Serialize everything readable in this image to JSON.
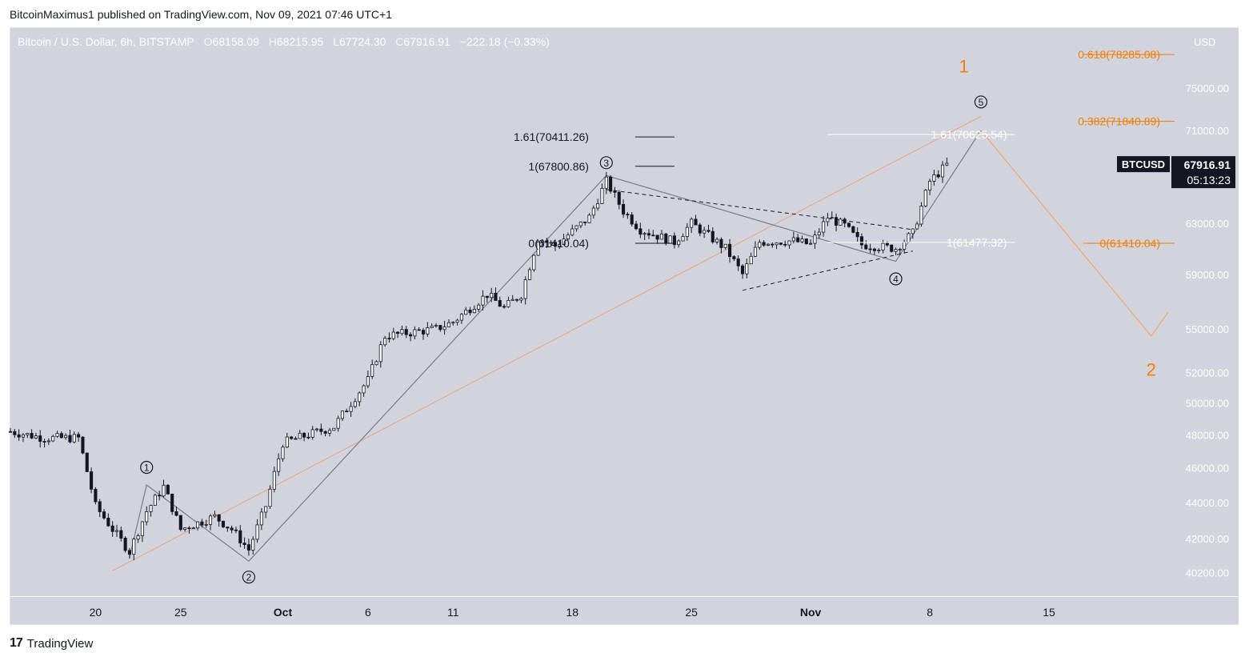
{
  "header": {
    "published_line": "BitcoinMaximus1 published on TradingView.com, Nov 09, 2021 07:46 UTC+1"
  },
  "legend": {
    "symbol": "Bitcoin / U.S. Dollar, 6h, BITSTAMP",
    "open_label": "O",
    "open": "68158.09",
    "high_label": "H",
    "high": "68215.95",
    "low_label": "L",
    "low": "67724.30",
    "close_label": "C",
    "close": "67916.91",
    "change": "−222.18 (−0.33%)"
  },
  "price_tag": {
    "ticker": "BTCUSD",
    "price": "67916.91",
    "countdown": "05:13:23"
  },
  "colors": {
    "accent": "#f57c00",
    "background": "#d1d4dc",
    "candle_up": "#ffffff",
    "candle_down": "#131722",
    "price_tag": "#131722"
  },
  "footer": {
    "brand": "TradingView"
  },
  "chart_data": {
    "type": "candlestick",
    "currency": "USD",
    "y_scale": "log",
    "ylim": [
      39000,
      81000
    ],
    "xlim": [
      "2021-09-15",
      "2021-11-22"
    ],
    "y_ticks": [
      "75000.00",
      "71000.00",
      "63000.00",
      "59000.00",
      "55000.00",
      "52000.00",
      "50000.00",
      "48000.00",
      "46000.00",
      "44000.00",
      "42000.00",
      "40200.00"
    ],
    "y_tick_values": [
      75000,
      71000,
      63000,
      59000,
      55000,
      52000,
      50000,
      48000,
      46000,
      44000,
      42000,
      40200
    ],
    "x_ticks": [
      "20",
      "25",
      "Oct",
      "6",
      "11",
      "18",
      "25",
      "Nov",
      "8",
      "15"
    ],
    "x_tick_dates": [
      "2021-09-20",
      "2021-09-25",
      "2021-10-01",
      "2021-10-06",
      "2021-10-11",
      "2021-10-18",
      "2021-10-25",
      "2021-11-01",
      "2021-11-08",
      "2021-11-15"
    ],
    "price_anchors": [
      {
        "date": "2021-09-15",
        "price": 48200
      },
      {
        "date": "2021-09-17",
        "price": 47800
      },
      {
        "date": "2021-09-19",
        "price": 47800
      },
      {
        "date": "2021-09-20",
        "price": 43800
      },
      {
        "date": "2021-09-21",
        "price": 42500
      },
      {
        "date": "2021-09-22",
        "price": 41300
      },
      {
        "date": "2021-09-23",
        "price": 43500
      },
      {
        "date": "2021-09-24",
        "price": 44900
      },
      {
        "date": "2021-09-25",
        "price": 42500
      },
      {
        "date": "2021-09-27",
        "price": 43200
      },
      {
        "date": "2021-09-28",
        "price": 42500
      },
      {
        "date": "2021-09-29",
        "price": 41400
      },
      {
        "date": "2021-09-30",
        "price": 43800
      },
      {
        "date": "2021-10-01",
        "price": 47500
      },
      {
        "date": "2021-10-04",
        "price": 48500
      },
      {
        "date": "2021-10-06",
        "price": 51500
      },
      {
        "date": "2021-10-07",
        "price": 54500
      },
      {
        "date": "2021-10-10",
        "price": 55000
      },
      {
        "date": "2021-10-11",
        "price": 55500
      },
      {
        "date": "2021-10-13",
        "price": 57500
      },
      {
        "date": "2021-10-14",
        "price": 56500
      },
      {
        "date": "2021-10-15",
        "price": 57500
      },
      {
        "date": "2021-10-16",
        "price": 61800
      },
      {
        "date": "2021-10-17",
        "price": 61200
      },
      {
        "date": "2021-10-19",
        "price": 63500
      },
      {
        "date": "2021-10-20",
        "price": 66500
      },
      {
        "date": "2021-10-21",
        "price": 64000
      },
      {
        "date": "2021-10-22",
        "price": 62500
      },
      {
        "date": "2021-10-24",
        "price": 61500
      },
      {
        "date": "2021-10-25",
        "price": 63000
      },
      {
        "date": "2021-10-27",
        "price": 61000
      },
      {
        "date": "2021-10-28",
        "price": 59000
      },
      {
        "date": "2021-10-29",
        "price": 61500
      },
      {
        "date": "2021-10-31",
        "price": 61600
      },
      {
        "date": "2021-11-01",
        "price": 61300
      },
      {
        "date": "2021-11-02",
        "price": 63500
      },
      {
        "date": "2021-11-03",
        "price": 62800
      },
      {
        "date": "2021-11-04",
        "price": 61300
      },
      {
        "date": "2021-11-06",
        "price": 61000
      },
      {
        "date": "2021-11-07",
        "price": 62200
      },
      {
        "date": "2021-11-08",
        "price": 66500
      },
      {
        "date": "2021-11-09",
        "price": 67916.91
      }
    ],
    "wave_count": [
      {
        "label": "1",
        "date": "2021-09-23",
        "price": 45000
      },
      {
        "label": "2",
        "date": "2021-09-29",
        "price": 40800
      },
      {
        "label": "3",
        "date": "2021-10-20",
        "price": 67000
      },
      {
        "label": "4",
        "date": "2021-11-06",
        "price": 60000
      },
      {
        "label": "5",
        "date": "2021-11-11",
        "price": 72000
      }
    ],
    "wave_path": [
      {
        "date": "2021-09-22",
        "price": 41000
      },
      {
        "date": "2021-09-23",
        "price": 45000
      },
      {
        "date": "2021-09-29",
        "price": 40800
      },
      {
        "date": "2021-10-20",
        "price": 67000
      },
      {
        "date": "2021-11-06",
        "price": 60000
      },
      {
        "date": "2021-11-11",
        "price": 71000
      }
    ],
    "projection_path": [
      {
        "date": "2021-11-11",
        "price": 71000
      },
      {
        "date": "2021-11-21",
        "price": 54500
      },
      {
        "date": "2021-11-22",
        "price": 56200
      }
    ],
    "trend_line": [
      {
        "date": "2021-09-21",
        "price": 40300
      },
      {
        "date": "2021-11-11",
        "price": 72300
      }
    ],
    "triangle_upper": [
      {
        "date": "2021-10-20",
        "price": 65800
      },
      {
        "date": "2021-11-07",
        "price": 62500
      }
    ],
    "triangle_lower": [
      {
        "date": "2021-10-28",
        "price": 57800
      },
      {
        "date": "2021-11-07",
        "price": 60800
      }
    ],
    "fib_levels": [
      {
        "label": "1.61(70411.26)",
        "value": 70411.26,
        "from": "2021-10-17",
        "to": "2021-10-24",
        "color": "#131722"
      },
      {
        "label": "1(67800.86)",
        "value": 67800.86,
        "from": "2021-10-17",
        "to": "2021-10-24",
        "color": "#131722"
      },
      {
        "label": "0(61410.04)",
        "value": 61410.04,
        "from": "2021-10-17",
        "to": "2021-10-24",
        "color": "#131722"
      },
      {
        "label": "1.61(70625.54)",
        "value": 70625.54,
        "from": "2021-11-02",
        "to": "2021-11-13",
        "color": "#ffffff"
      },
      {
        "label": "1(61477.32)",
        "value": 61477.32,
        "from": "2021-11-02",
        "to": "2021-11-13",
        "color": "#ffffff"
      },
      {
        "label": "0.618(78285.08)",
        "value": 78285.08,
        "from": "2021-11-17",
        "to": "2021-11-22",
        "color": "#f57c00"
      },
      {
        "label": "0.382(71840.89)",
        "value": 71840.89,
        "from": "2021-11-17",
        "to": "2021-11-22",
        "color": "#f57c00"
      },
      {
        "label": "0(61410.04)",
        "value": 61410.04,
        "from": "2021-11-17",
        "to": "2021-11-22",
        "color": "#f57c00"
      }
    ],
    "major_wave_labels": [
      {
        "label": "1",
        "date": "2021-11-10",
        "price": 76500
      },
      {
        "label": "2",
        "date": "2021-11-21",
        "price": 51800
      }
    ]
  }
}
